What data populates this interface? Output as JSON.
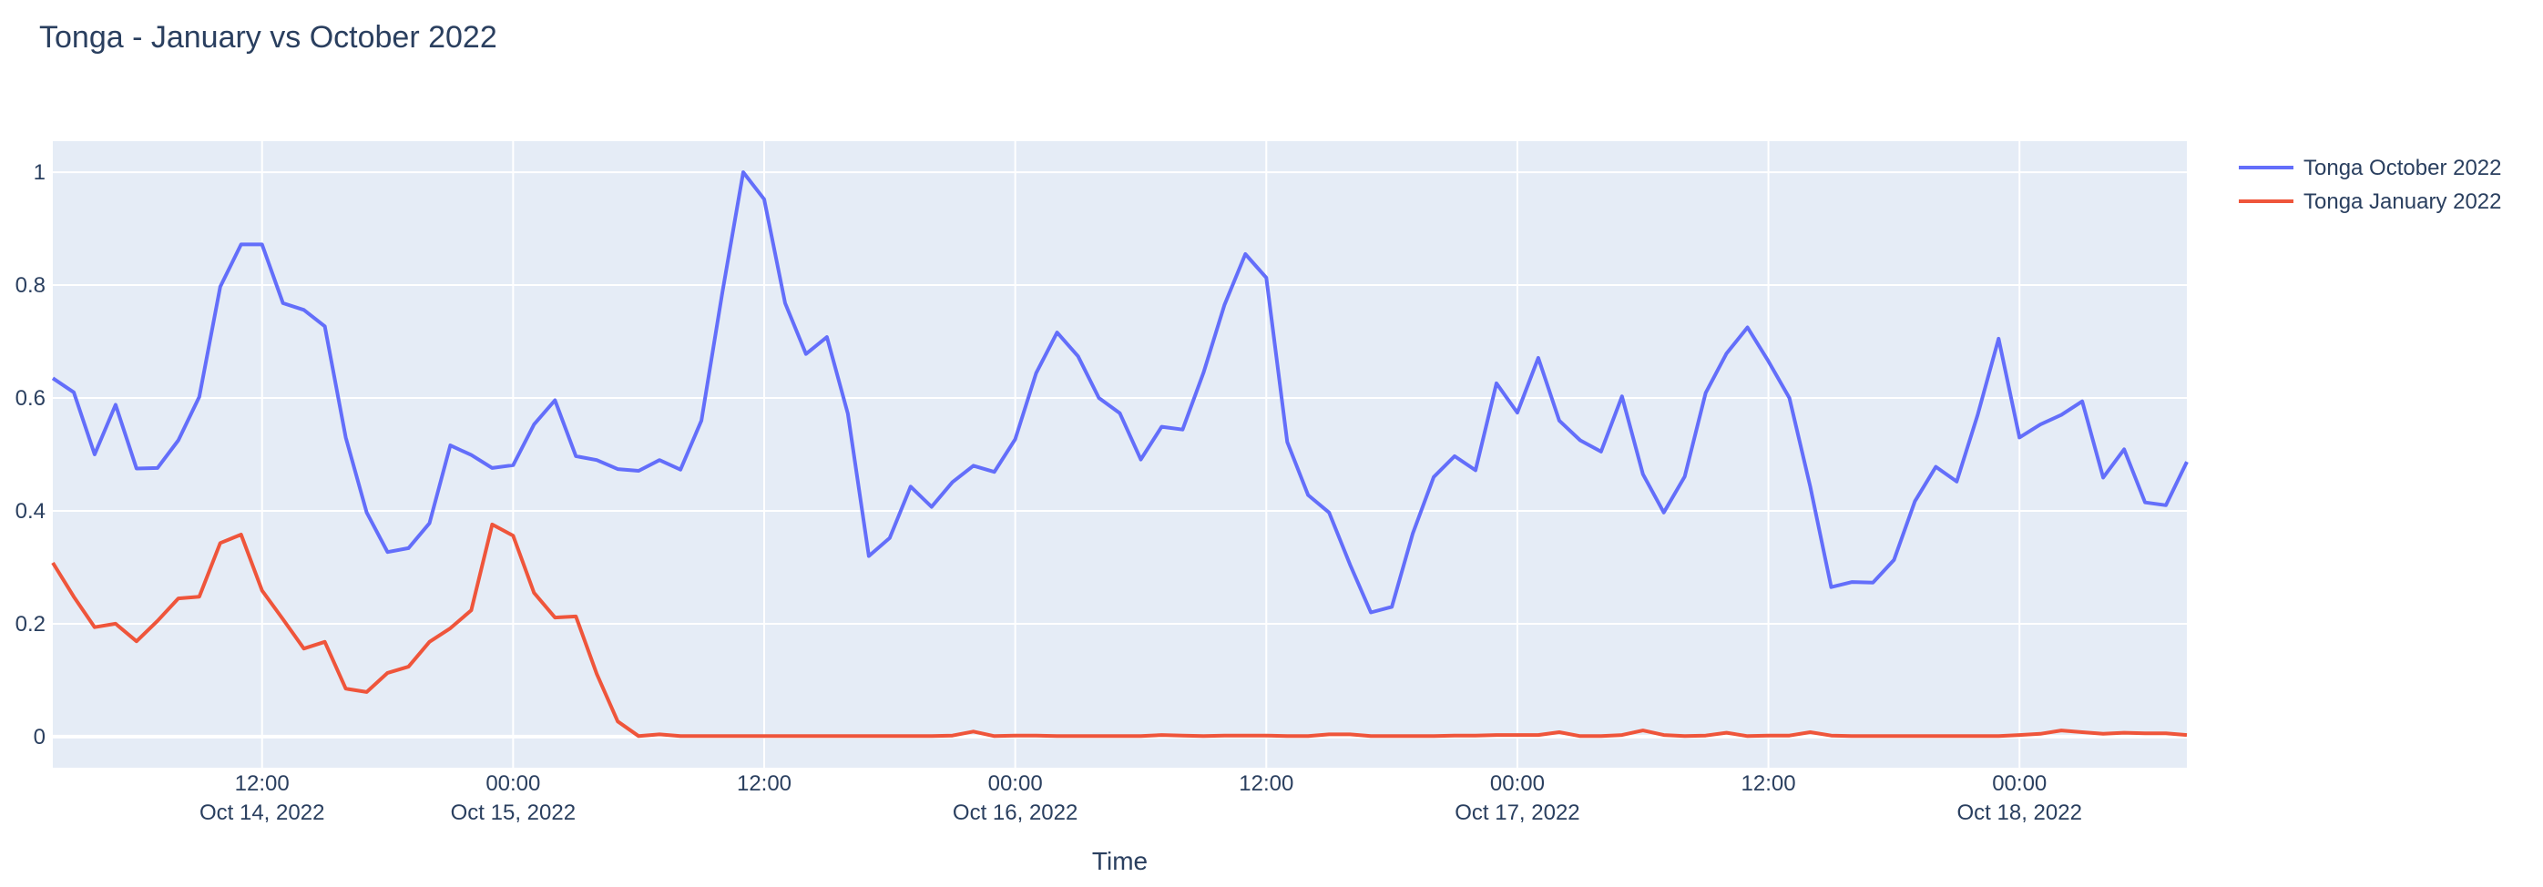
{
  "chart_data": {
    "type": "line",
    "title": "Tonga - January vs October 2022",
    "xlabel": "Time",
    "ylabel": "",
    "xlim": [
      "2022-10-14 02:00",
      "2022-10-18 08:00"
    ],
    "ylim": [
      -0.055,
      1.055
    ],
    "grid": true,
    "legend_position": "top-right",
    "background_color": "#E5ECF6",
    "x_ticks": [
      {
        "x": "2022-10-14 12:00",
        "time": "12:00",
        "date": "Oct 14, 2022"
      },
      {
        "x": "2022-10-15 00:00",
        "time": "00:00",
        "date": "Oct 15, 2022"
      },
      {
        "x": "2022-10-15 12:00",
        "time": "12:00",
        "date": ""
      },
      {
        "x": "2022-10-16 00:00",
        "time": "00:00",
        "date": "Oct 16, 2022"
      },
      {
        "x": "2022-10-16 12:00",
        "time": "12:00",
        "date": ""
      },
      {
        "x": "2022-10-17 00:00",
        "time": "00:00",
        "date": "Oct 17, 2022"
      },
      {
        "x": "2022-10-17 12:00",
        "time": "12:00",
        "date": ""
      },
      {
        "x": "2022-10-18 00:00",
        "time": "00:00",
        "date": "Oct 18, 2022"
      }
    ],
    "y_ticks": [
      {
        "value": 0,
        "label": "0"
      },
      {
        "value": 0.2,
        "label": "0.2"
      },
      {
        "value": 0.4,
        "label": "0.4"
      },
      {
        "value": 0.6,
        "label": "0.6"
      },
      {
        "value": 0.8,
        "label": "0.8"
      },
      {
        "value": 1,
        "label": "1"
      }
    ],
    "x": [
      "2022-10-14 02:00",
      "2022-10-14 03:00",
      "2022-10-14 04:00",
      "2022-10-14 05:00",
      "2022-10-14 06:00",
      "2022-10-14 07:00",
      "2022-10-14 08:00",
      "2022-10-14 09:00",
      "2022-10-14 10:00",
      "2022-10-14 11:00",
      "2022-10-14 12:00",
      "2022-10-14 13:00",
      "2022-10-14 14:00",
      "2022-10-14 15:00",
      "2022-10-14 16:00",
      "2022-10-14 17:00",
      "2022-10-14 18:00",
      "2022-10-14 19:00",
      "2022-10-14 20:00",
      "2022-10-14 21:00",
      "2022-10-14 22:00",
      "2022-10-14 23:00",
      "2022-10-15 00:00",
      "2022-10-15 01:00",
      "2022-10-15 02:00",
      "2022-10-15 03:00",
      "2022-10-15 04:00",
      "2022-10-15 05:00",
      "2022-10-15 06:00",
      "2022-10-15 07:00",
      "2022-10-15 08:00",
      "2022-10-15 09:00",
      "2022-10-15 10:00",
      "2022-10-15 11:00",
      "2022-10-15 12:00",
      "2022-10-15 13:00",
      "2022-10-15 14:00",
      "2022-10-15 15:00",
      "2022-10-15 16:00",
      "2022-10-15 17:00",
      "2022-10-15 18:00",
      "2022-10-15 19:00",
      "2022-10-15 20:00",
      "2022-10-15 21:00",
      "2022-10-15 22:00",
      "2022-10-15 23:00",
      "2022-10-16 00:00",
      "2022-10-16 01:00",
      "2022-10-16 02:00",
      "2022-10-16 03:00",
      "2022-10-16 04:00",
      "2022-10-16 05:00",
      "2022-10-16 06:00",
      "2022-10-16 07:00",
      "2022-10-16 08:00",
      "2022-10-16 09:00",
      "2022-10-16 10:00",
      "2022-10-16 11:00",
      "2022-10-16 12:00",
      "2022-10-16 13:00",
      "2022-10-16 14:00",
      "2022-10-16 15:00",
      "2022-10-16 16:00",
      "2022-10-16 17:00",
      "2022-10-16 18:00",
      "2022-10-16 19:00",
      "2022-10-16 20:00",
      "2022-10-16 21:00",
      "2022-10-16 22:00",
      "2022-10-16 23:00",
      "2022-10-17 00:00",
      "2022-10-17 01:00",
      "2022-10-17 02:00",
      "2022-10-17 03:00",
      "2022-10-17 04:00",
      "2022-10-17 05:00",
      "2022-10-17 06:00",
      "2022-10-17 07:00",
      "2022-10-17 08:00",
      "2022-10-17 09:00",
      "2022-10-17 10:00",
      "2022-10-17 11:00",
      "2022-10-17 12:00",
      "2022-10-17 13:00",
      "2022-10-17 14:00",
      "2022-10-17 15:00",
      "2022-10-17 16:00",
      "2022-10-17 17:00",
      "2022-10-17 18:00",
      "2022-10-17 19:00",
      "2022-10-17 20:00",
      "2022-10-17 21:00",
      "2022-10-17 22:00",
      "2022-10-17 23:00",
      "2022-10-18 00:00",
      "2022-10-18 01:00",
      "2022-10-18 02:00",
      "2022-10-18 03:00",
      "2022-10-18 04:00",
      "2022-10-18 05:00",
      "2022-10-18 06:00",
      "2022-10-18 07:00",
      "2022-10-18 08:00"
    ],
    "series": [
      {
        "name": "Tonga October 2022",
        "color": "#636EFA",
        "values": [
          0.635,
          0.61,
          0.5,
          0.588,
          0.475,
          0.476,
          0.525,
          0.602,
          0.797,
          0.872,
          0.872,
          0.768,
          0.756,
          0.727,
          0.53,
          0.397,
          0.327,
          0.334,
          0.378,
          0.516,
          0.499,
          0.476,
          0.481,
          0.553,
          0.596,
          0.497,
          0.49,
          0.474,
          0.471,
          0.49,
          0.473,
          0.56,
          0.787,
          1.0,
          0.952,
          0.768,
          0.678,
          0.708,
          0.572,
          0.32,
          0.352,
          0.443,
          0.407,
          0.451,
          0.48,
          0.469,
          0.527,
          0.644,
          0.716,
          0.674,
          0.6,
          0.573,
          0.491,
          0.549,
          0.544,
          0.645,
          0.765,
          0.855,
          0.813,
          0.522,
          0.428,
          0.397,
          0.305,
          0.22,
          0.23,
          0.36,
          0.46,
          0.497,
          0.472,
          0.626,
          0.574,
          0.671,
          0.56,
          0.525,
          0.505,
          0.603,
          0.465,
          0.397,
          0.461,
          0.609,
          0.679,
          0.725,
          0.665,
          0.6,
          0.443,
          0.265,
          0.274,
          0.273,
          0.313,
          0.417,
          0.478,
          0.452,
          0.57,
          0.705,
          0.53,
          0.553,
          0.57,
          0.594,
          0.459,
          0.509,
          0.415,
          0.41,
          0.487
        ]
      },
      {
        "name": "Tonga January 2022",
        "color": "#EF553B",
        "values": [
          0.308,
          0.248,
          0.194,
          0.2,
          0.169,
          0.205,
          0.245,
          0.248,
          0.343,
          0.358,
          0.259,
          0.208,
          0.156,
          0.168,
          0.085,
          0.079,
          0.113,
          0.124,
          0.168,
          0.192,
          0.224,
          0.376,
          0.356,
          0.255,
          0.211,
          0.213,
          0.111,
          0.027,
          0.001,
          0.004,
          0.001,
          0.001,
          0.001,
          0.001,
          0.001,
          0.001,
          0.001,
          0.001,
          0.001,
          0.001,
          0.001,
          0.001,
          0.001,
          0.002,
          0.009,
          0.001,
          0.002,
          0.002,
          0.001,
          0.001,
          0.001,
          0.001,
          0.001,
          0.003,
          0.002,
          0.001,
          0.002,
          0.002,
          0.002,
          0.001,
          0.001,
          0.004,
          0.004,
          0.001,
          0.001,
          0.001,
          0.001,
          0.002,
          0.002,
          0.003,
          0.003,
          0.003,
          0.008,
          0.001,
          0.001,
          0.003,
          0.011,
          0.003,
          0.001,
          0.002,
          0.007,
          0.001,
          0.002,
          0.002,
          0.008,
          0.002,
          0.001,
          0.001,
          0.001,
          0.001,
          0.001,
          0.001,
          0.001,
          0.001,
          0.003,
          0.005,
          0.011,
          0.008,
          0.005,
          0.007,
          0.006,
          0.006,
          0.003
        ]
      }
    ]
  }
}
